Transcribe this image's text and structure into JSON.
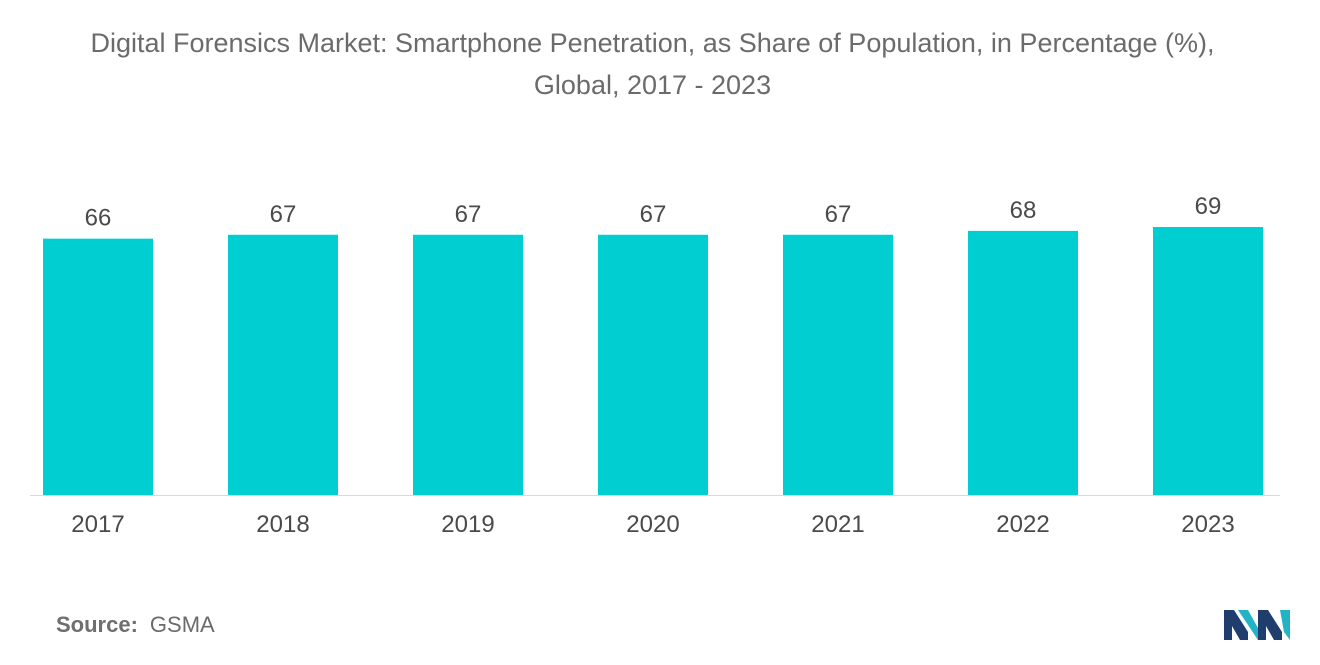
{
  "title_line1": "Digital Forensics Market: Smartphone Penetration, as Share of Population, in Percentage (%),",
  "title_line2": "Global, 2017 - 2023",
  "source_label": "Source:",
  "source_value": "GSMA",
  "logo": "mordor-intelligence-logo",
  "colors": {
    "bar": "#00CED1",
    "text": "#6b6b6b",
    "axis": "#d9d9d9",
    "logo_dark": "#1f3e6e",
    "logo_light": "#22b3c4"
  },
  "chart_data": {
    "type": "bar",
    "title": "Digital Forensics Market: Smartphone Penetration, as Share of Population, in Percentage (%), Global, 2017 - 2023",
    "categories": [
      "2017",
      "2018",
      "2019",
      "2020",
      "2021",
      "2022",
      "2023"
    ],
    "values": [
      66,
      67,
      67,
      67,
      67,
      68,
      69
    ],
    "xlabel": "",
    "ylabel": "",
    "ylim": [
      0,
      69
    ],
    "grid": false,
    "legend": "none",
    "data_labels": true
  }
}
